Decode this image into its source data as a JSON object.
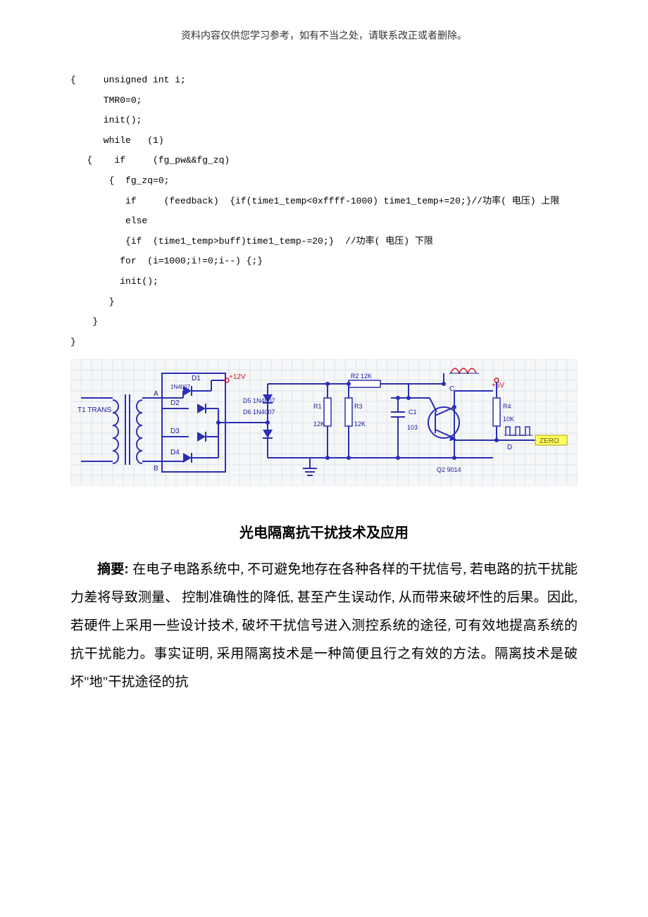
{
  "header": {
    "note": "资料内容仅供您学习参考，如有不当之处，请联系改正或者删除。"
  },
  "code": {
    "lines": [
      "{     unsigned int i;",
      "      TMR0=0;",
      "      init();",
      "      while   (1)",
      "   {    if     (fg_pw&&fg_zq)",
      "       {  fg_zq=0;",
      "          if     (feedback)  {if(time1_temp<0xffff-1000) time1_temp+=20;}//功率( 电压) 上限",
      "          else",
      "          {if  (time1_temp>buff)time1_temp-=20;}  //功率( 电压) 下限",
      "         for  (i=1000;i!=0;i--) {;}",
      "         init();",
      "       }",
      "    }",
      "}"
    ]
  },
  "circuit": {
    "background_color": "#f5f7f8",
    "grid_color": "#dfe6ea",
    "wire_color": "#2a2fb5",
    "wire_width": 2,
    "vcc_color": "#d01020",
    "text_color": "#1a1a9a",
    "text_fontsize": 10,
    "labels": {
      "t1": "T1 TRANS",
      "d1": "D1",
      "d1_part": "1N4007",
      "d2": "D2",
      "d3": "D3",
      "d4": "D4",
      "d5": "D5 1N4007",
      "d6": "D6 1N4007",
      "vcc12": "+12V",
      "r2": "R2 12K",
      "r1": "R1",
      "r1_val": "12K",
      "r3": "R3",
      "r3_val": "12K",
      "c1": "C1",
      "c1_val": "103",
      "q2": "Q2 9014",
      "v5": "+5V",
      "r4": "R4",
      "r4_val": "10K",
      "zero": "ZERO",
      "nodeA": "A",
      "nodeB": "B",
      "nodeC": "C",
      "nodeD": "D"
    }
  },
  "article": {
    "title": "光电隔离抗干扰技术及应用",
    "abstract_label": "摘要: ",
    "abstract_text": "在电子电路系统中, 不可避免地存在各种各样的干扰信号, 若电路的抗干扰能力差将导致测量、 控制准确性的降低, 甚至产生误动作, 从而带来破坏性的后果。因此, 若硬件上采用一些设计技术, 破坏干扰信号进入测控系统的途径, 可有效地提高系统的抗干扰能力。事实证明, 采用隔离技术是一种简便且行之有效的方法。隔离技术是破坏\"地\"干扰途径的抗"
  }
}
